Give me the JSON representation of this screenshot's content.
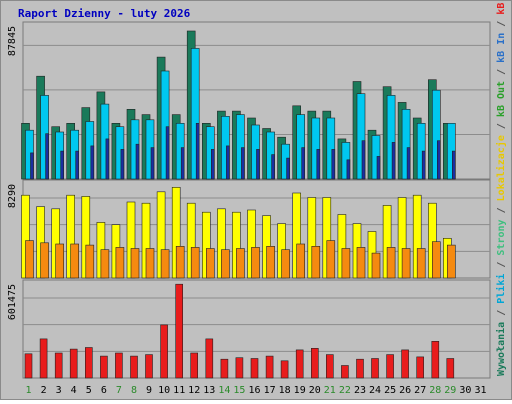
{
  "chart_data": [
    {
      "type": "bar",
      "panel": "top",
      "title": "Raport Dzienny -  luty 2026",
      "ymax_label": "87845",
      "ylim": [
        0,
        87845
      ],
      "grid": true,
      "categories": [
        "1",
        "2",
        "3",
        "4",
        "5",
        "6",
        "7",
        "8",
        "9",
        "10",
        "11",
        "12",
        "13",
        "14",
        "15",
        "16",
        "17",
        "18",
        "19",
        "20",
        "21",
        "22",
        "23",
        "24",
        "25",
        "26",
        "27",
        "28",
        "29",
        "30",
        "31"
      ],
      "weekend_days": [
        "1",
        "7",
        "8",
        "14",
        "15",
        "21",
        "22",
        "28",
        "29"
      ],
      "series": [
        {
          "name": "Wywołania",
          "color": "#1a7a5a",
          "values": [
            32000,
            59000,
            30000,
            32000,
            41000,
            50000,
            32000,
            40000,
            37000,
            70000,
            37000,
            85000,
            32000,
            39000,
            39000,
            35000,
            29000,
            24000,
            42000,
            39000,
            39000,
            23000,
            56000,
            28000,
            53000,
            44000,
            35000,
            57000,
            32000,
            null,
            null
          ]
        },
        {
          "name": "Pliki",
          "color": "#00c8f0",
          "values": [
            28000,
            48000,
            27000,
            28000,
            33000,
            43000,
            30000,
            34000,
            34000,
            62000,
            32000,
            75000,
            30000,
            36000,
            37000,
            31000,
            27000,
            20000,
            37000,
            35000,
            35000,
            21000,
            49000,
            25000,
            48000,
            40000,
            32000,
            51000,
            32000,
            null,
            null
          ]
        },
        {
          "name": "Strony",
          "color": "#1a2fa0",
          "values": [
            15000,
            26000,
            16000,
            16000,
            19000,
            23000,
            17000,
            20000,
            18000,
            30000,
            18000,
            32000,
            17000,
            19000,
            18000,
            17000,
            14000,
            12000,
            18000,
            17000,
            17000,
            11000,
            22000,
            13000,
            21000,
            18000,
            16000,
            22000,
            16000,
            null,
            null
          ]
        }
      ]
    },
    {
      "type": "bar",
      "panel": "middle",
      "ymax_label": "8290",
      "ylim": [
        0,
        8290
      ],
      "grid": true,
      "series": [
        {
          "name": "Lokalizacje",
          "color": "#ffff00",
          "values": [
            7300,
            6300,
            6100,
            7300,
            7200,
            4900,
            4700,
            6700,
            6600,
            7600,
            8000,
            6600,
            5800,
            6100,
            5800,
            6000,
            5500,
            4800,
            7500,
            7100,
            7100,
            5600,
            4800,
            4100,
            6400,
            7100,
            7300,
            6600,
            3500,
            null,
            null
          ]
        },
        {
          "name": "kB Out",
          "color": "#f58a10",
          "values": [
            3300,
            3100,
            3000,
            3000,
            2900,
            2500,
            2700,
            2600,
            2600,
            2500,
            2800,
            2700,
            2600,
            2500,
            2600,
            2700,
            2800,
            2500,
            3000,
            2800,
            3300,
            2600,
            2700,
            2200,
            2700,
            2600,
            2600,
            3200,
            2900,
            null,
            null
          ]
        }
      ]
    },
    {
      "type": "bar",
      "panel": "bottom",
      "ymax_label": "601475",
      "ylim": [
        0,
        601475
      ],
      "grid": true,
      "series": [
        {
          "name": "kB F",
          "color": "#e81c1c",
          "values": [
            155000,
            250000,
            160000,
            185000,
            195000,
            140000,
            160000,
            140000,
            150000,
            340000,
            600000,
            160000,
            250000,
            120000,
            130000,
            125000,
            140000,
            110000,
            180000,
            190000,
            150000,
            80000,
            120000,
            125000,
            150000,
            180000,
            135000,
            235000,
            125000,
            null,
            null
          ]
        }
      ]
    }
  ],
  "legend": [
    {
      "label": "Wywołania",
      "color": "#1a7a5a"
    },
    {
      "label": "/",
      "color": "#555555"
    },
    {
      "label": "Pliki",
      "color": "#00a6d6"
    },
    {
      "label": "/",
      "color": "#555555"
    },
    {
      "label": "Strony",
      "color": "#3fbf7f"
    },
    {
      "label": "/",
      "color": "#555555"
    },
    {
      "label": "Lokalizacje",
      "color": "#e8c800"
    },
    {
      "label": "/",
      "color": "#555555"
    },
    {
      "label": "kB Out",
      "color": "#2aa02a"
    },
    {
      "label": "/",
      "color": "#555555"
    },
    {
      "label": "kB In",
      "color": "#2a70c8"
    },
    {
      "label": "/",
      "color": "#555555"
    },
    {
      "label": "kB F",
      "color": "#e81c1c"
    }
  ],
  "colors": {
    "background": "#c0c0c0",
    "frame": "#ffffff",
    "title": "#0000c0",
    "weekday_label": "#000000",
    "weekend_label": "#2a8a2a"
  }
}
